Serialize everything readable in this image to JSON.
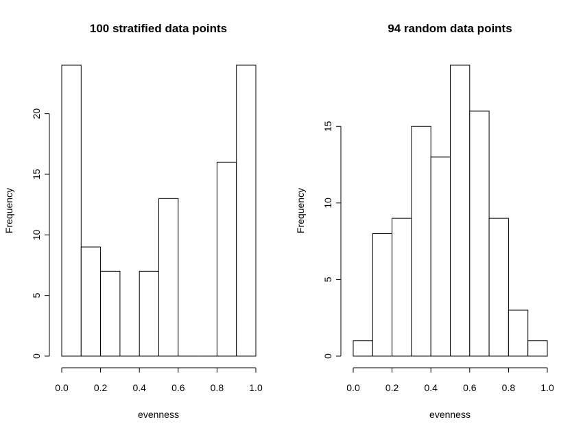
{
  "chart_data": [
    {
      "type": "bar",
      "title": "100 stratified data points",
      "xlabel": "evenness",
      "ylabel": "Frequency",
      "bin_edges": [
        0.0,
        0.1,
        0.2,
        0.3,
        0.4,
        0.5,
        0.6,
        0.7,
        0.8,
        0.9,
        1.0
      ],
      "values": [
        24,
        9,
        7,
        0,
        7,
        13,
        0,
        0,
        16,
        24
      ],
      "xlim": [
        0.0,
        1.0
      ],
      "ylim": [
        0,
        24
      ],
      "xticks": [
        "0.0",
        "0.2",
        "0.4",
        "0.6",
        "0.8",
        "1.0"
      ],
      "yticks": [
        "0",
        "5",
        "10",
        "15",
        "20"
      ],
      "grid": false
    },
    {
      "type": "bar",
      "title": "94 random data points",
      "xlabel": "evenness",
      "ylabel": "Frequency",
      "bin_edges": [
        0.0,
        0.1,
        0.2,
        0.3,
        0.4,
        0.5,
        0.6,
        0.7,
        0.8,
        0.9,
        1.0
      ],
      "values": [
        1,
        8,
        9,
        15,
        13,
        19,
        16,
        9,
        3,
        1
      ],
      "xlim": [
        0.0,
        1.0
      ],
      "ylim": [
        0,
        19
      ],
      "xticks": [
        "0.0",
        "0.2",
        "0.4",
        "0.6",
        "0.8",
        "1.0"
      ],
      "yticks": [
        "0",
        "5",
        "10",
        "15"
      ],
      "grid": false
    }
  ]
}
